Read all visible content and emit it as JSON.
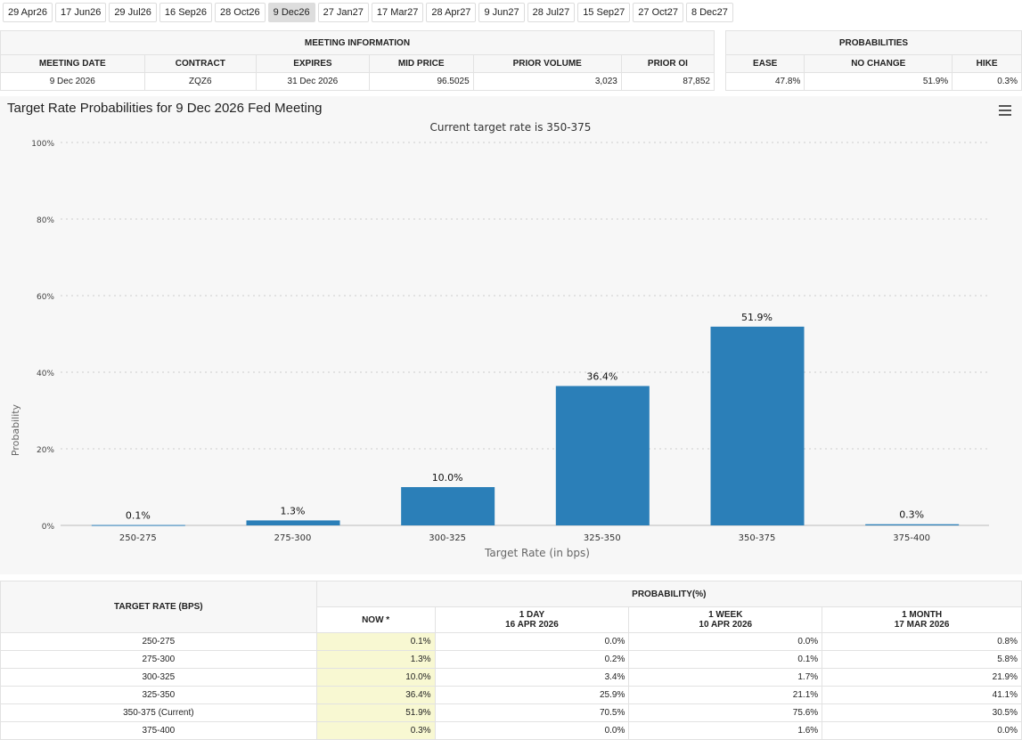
{
  "tabs": [
    "29 Apr26",
    "17 Jun26",
    "29 Jul26",
    "16 Sep26",
    "28 Oct26",
    "9 Dec26",
    "27 Jan27",
    "17 Mar27",
    "28 Apr27",
    "9 Jun27",
    "28 Jul27",
    "15 Sep27",
    "27 Oct27",
    "8 Dec27"
  ],
  "active_tab": "9 Dec26",
  "meeting_info": {
    "title": "MEETING INFORMATION",
    "headers": [
      "MEETING DATE",
      "CONTRACT",
      "EXPIRES",
      "MID PRICE",
      "PRIOR VOLUME",
      "PRIOR OI"
    ],
    "values": [
      "9 Dec 2026",
      "ZQZ6",
      "31 Dec 2026",
      "96.5025",
      "3,023",
      "87,852"
    ]
  },
  "probabilities": {
    "title": "PROBABILITIES",
    "headers": [
      "EASE",
      "NO CHANGE",
      "HIKE"
    ],
    "values": [
      "47.8%",
      "51.9%",
      "0.3%"
    ]
  },
  "chart_data": {
    "type": "bar",
    "title": "Target Rate Probabilities for 9 Dec 2026 Fed Meeting",
    "subtitle": "Current target rate is 350-375",
    "xlabel": "Target Rate (in bps)",
    "ylabel": "Probability",
    "categories": [
      "250-275",
      "275-300",
      "300-325",
      "325-350",
      "350-375",
      "375-400"
    ],
    "values": [
      0.1,
      1.3,
      10.0,
      36.4,
      51.9,
      0.3
    ],
    "data_labels": [
      "0.1%",
      "1.3%",
      "10.0%",
      "36.4%",
      "51.9%",
      "0.3%"
    ],
    "yticks": [
      "0%",
      "20%",
      "40%",
      "60%",
      "80%",
      "100%"
    ],
    "ylim": [
      0,
      100
    ],
    "grid": true,
    "color": "#2b7fb8"
  },
  "prob_table": {
    "row_header": "TARGET RATE (BPS)",
    "group_header": "PROBABILITY(%)",
    "columns": [
      {
        "l1": "NOW *",
        "l2": ""
      },
      {
        "l1": "1 DAY",
        "l2": "16 APR 2026"
      },
      {
        "l1": "1 WEEK",
        "l2": "10 APR 2026"
      },
      {
        "l1": "1 MONTH",
        "l2": "17 MAR 2026"
      }
    ],
    "rows": [
      [
        "250-275",
        "0.1%",
        "0.0%",
        "0.0%",
        "0.8%"
      ],
      [
        "275-300",
        "1.3%",
        "0.2%",
        "0.1%",
        "5.8%"
      ],
      [
        "300-325",
        "10.0%",
        "3.4%",
        "1.7%",
        "21.9%"
      ],
      [
        "325-350",
        "36.4%",
        "25.9%",
        "21.1%",
        "41.1%"
      ],
      [
        "350-375 (Current)",
        "51.9%",
        "70.5%",
        "75.6%",
        "30.5%"
      ],
      [
        "375-400",
        "0.3%",
        "0.0%",
        "1.6%",
        "0.0%"
      ]
    ]
  }
}
